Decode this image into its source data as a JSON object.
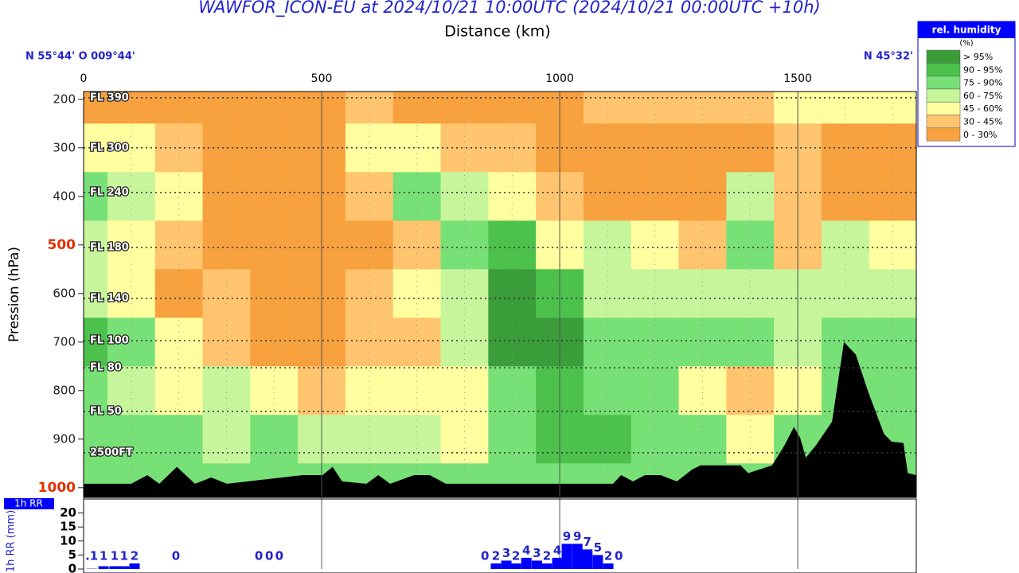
{
  "chart_data": {
    "type": "cross-section",
    "title": "WAWFOR_ICON-EU at 2024/10/21 10:00UTC (2024/10/21 00:00UTC +10h)",
    "x_label": "Distance (km)",
    "y_label": "Pression (hPa)",
    "start_label": "N 55°44' O 009°44'",
    "end_label": "N 45°32'",
    "xlim": [
      0,
      1749
    ],
    "xticks": [
      0,
      500,
      1000,
      1500
    ],
    "ylim": [
      184,
      1020
    ],
    "y_inverted": true,
    "yticks": [
      200,
      300,
      400,
      500,
      600,
      700,
      800,
      900,
      1000
    ],
    "highlighted_yticks": [
      500,
      1000
    ],
    "highlight_color": "#e03000",
    "flight_levels": [
      {
        "label": "FL 390",
        "pressure": 197
      },
      {
        "label": "FL 300",
        "pressure": 300
      },
      {
        "label": "FL 240",
        "pressure": 392
      },
      {
        "label": "FL 180",
        "pressure": 505
      },
      {
        "label": "FL 140",
        "pressure": 610
      },
      {
        "label": "FL 100",
        "pressure": 697
      },
      {
        "label": "FL 80",
        "pressure": 753
      },
      {
        "label": "FL 50",
        "pressure": 843
      },
      {
        "label": "2500FT",
        "pressure": 928
      }
    ],
    "legend": {
      "title": "rel. humidity",
      "unit": "(%)",
      "classes": [
        {
          "label": "> 95%",
          "from": 95,
          "color": "#3a9d3a"
        },
        {
          "label": "90 - 95%",
          "from": 90,
          "color": "#4cc24c"
        },
        {
          "label": "75 - 90%",
          "from": 75,
          "color": "#77e077"
        },
        {
          "label": "60 - 75%",
          "from": 60,
          "color": "#c6f59c"
        },
        {
          "label": "45 - 60%",
          "from": 45,
          "color": "#ffffa0"
        },
        {
          "label": "30 - 45%",
          "from": 30,
          "color": "#ffc46e"
        },
        {
          "label": "0 - 30%",
          "from": 0,
          "color": "#f7a13f"
        }
      ]
    },
    "field": {
      "x": [
        0,
        100,
        200,
        300,
        400,
        500,
        600,
        700,
        800,
        900,
        1000,
        1100,
        1200,
        1300,
        1400,
        1500,
        1600,
        1700
      ],
      "pressure": [
        200,
        300,
        400,
        500,
        600,
        700,
        800,
        900,
        1000
      ],
      "values": [
        [
          20,
          20,
          20,
          20,
          20,
          20,
          35,
          20,
          25,
          20,
          25,
          35,
          35,
          35,
          30,
          50,
          55,
          50
        ],
        [
          45,
          50,
          40,
          20,
          20,
          20,
          55,
          50,
          35,
          30,
          20,
          20,
          20,
          20,
          20,
          35,
          20,
          20
        ],
        [
          80,
          70,
          55,
          20,
          20,
          20,
          40,
          75,
          70,
          55,
          35,
          20,
          20,
          20,
          70,
          35,
          20,
          20
        ],
        [
          70,
          55,
          40,
          20,
          20,
          20,
          20,
          40,
          75,
          92,
          55,
          65,
          50,
          40,
          75,
          30,
          65,
          50
        ],
        [
          70,
          55,
          20,
          40,
          20,
          20,
          40,
          50,
          70,
          97,
          92,
          70,
          65,
          65,
          70,
          70,
          70,
          65
        ],
        [
          92,
          75,
          55,
          40,
          25,
          20,
          40,
          40,
          70,
          97,
          97,
          80,
          75,
          85,
          75,
          70,
          80,
          75
        ],
        [
          80,
          70,
          55,
          65,
          50,
          40,
          50,
          55,
          55,
          75,
          92,
          85,
          75,
          55,
          40,
          55,
          80,
          80
        ],
        [
          75,
          75,
          85,
          70,
          75,
          70,
          60,
          65,
          58,
          85,
          92,
          90,
          80,
          75,
          50,
          80,
          80,
          75
        ],
        [
          85,
          85,
          80,
          80,
          80,
          80,
          75,
          75,
          75,
          80,
          85,
          85,
          80,
          80,
          80,
          80,
          80,
          80
        ]
      ]
    },
    "terrain": {
      "color": "#000000",
      "x": [
        0,
        100,
        134,
        159,
        196,
        234,
        268,
        301,
        460,
        502,
        523,
        543,
        594,
        619,
        644,
        694,
        727,
        761,
        1112,
        1129,
        1154,
        1179,
        1212,
        1246,
        1279,
        1296,
        1380,
        1396,
        1446,
        1472,
        1492,
        1505,
        1517,
        1538,
        1572,
        1597,
        1622,
        1647,
        1681,
        1697,
        1722,
        1731,
        1749
      ],
      "pressure": [
        992,
        992,
        974,
        992,
        957,
        992,
        979,
        992,
        974,
        974,
        957,
        987,
        992,
        974,
        992,
        974,
        974,
        992,
        992,
        974,
        987,
        974,
        974,
        987,
        962,
        954,
        954,
        970,
        954,
        913,
        875,
        897,
        938,
        913,
        864,
        700,
        726,
        800,
        889,
        905,
        908,
        970,
        974
      ]
    },
    "precipitation": {
      "title": "1h RR",
      "y_label": "1h RR (mm)",
      "color": "#0000ff",
      "ylim": [
        0,
        25
      ],
      "yticks": [
        0,
        5,
        10,
        15,
        20
      ],
      "x": [
        17,
        42,
        65,
        85,
        107,
        194,
        368,
        390,
        411,
        843,
        866,
        888,
        908,
        930,
        952,
        973,
        995,
        1015,
        1037,
        1058,
        1080,
        1102,
        1124
      ],
      "values": [
        0.1,
        1,
        1,
        1,
        2,
        0,
        0,
        0,
        0,
        0,
        2,
        3,
        2,
        4,
        3,
        2,
        4,
        9,
        9,
        7,
        5,
        2,
        0
      ],
      "value_labels": [
        ".1",
        "1",
        "1",
        "1",
        "2",
        "0",
        "0",
        "0",
        "0",
        "0",
        "2",
        "3",
        "2",
        "4",
        "3",
        "2",
        "4",
        "9",
        "9",
        "7",
        "5",
        "2",
        "0"
      ]
    }
  }
}
